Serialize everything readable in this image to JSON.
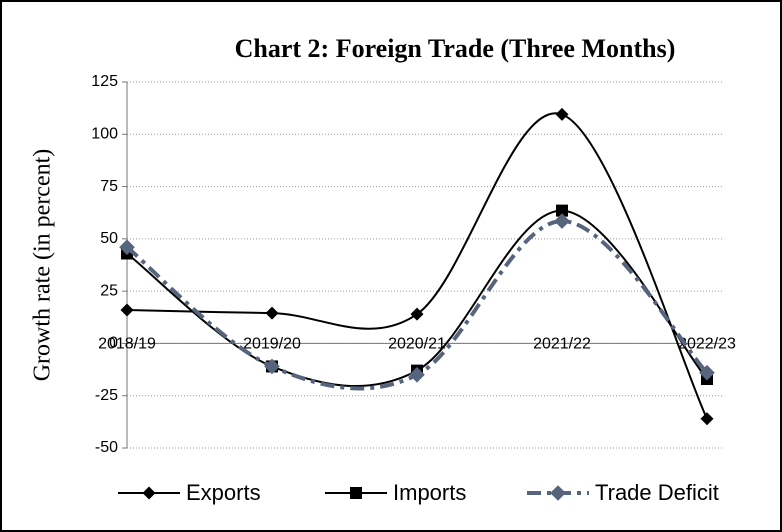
{
  "chart_data": {
    "type": "line",
    "title": "Chart 2: Foreign Trade (Three Months)",
    "y_label": "Growth rate (in percent)",
    "categories": [
      "2018/19",
      "2019/20",
      "2020/21",
      "2021/22",
      "2022/23"
    ],
    "series": [
      {
        "name": "Exports",
        "color": "#000000",
        "marker": "diamond",
        "dash": "solid",
        "values": [
          16,
          14.5,
          14,
          109.5,
          -36
        ]
      },
      {
        "name": "Imports",
        "color": "#000000",
        "marker": "square",
        "dash": "solid",
        "values": [
          43,
          -11,
          -13,
          63.5,
          -17
        ]
      },
      {
        "name": "Trade Deficit",
        "color": "#56657d",
        "marker": "diamond",
        "dash": "dashdot",
        "values": [
          46,
          -11,
          -15,
          58.5,
          -14
        ]
      }
    ],
    "ylim": [
      -50,
      125
    ],
    "yticks": [
      -50,
      -25,
      0,
      25,
      50,
      75,
      100,
      125
    ],
    "grid": true,
    "smooth": true,
    "legend": "bottom"
  }
}
